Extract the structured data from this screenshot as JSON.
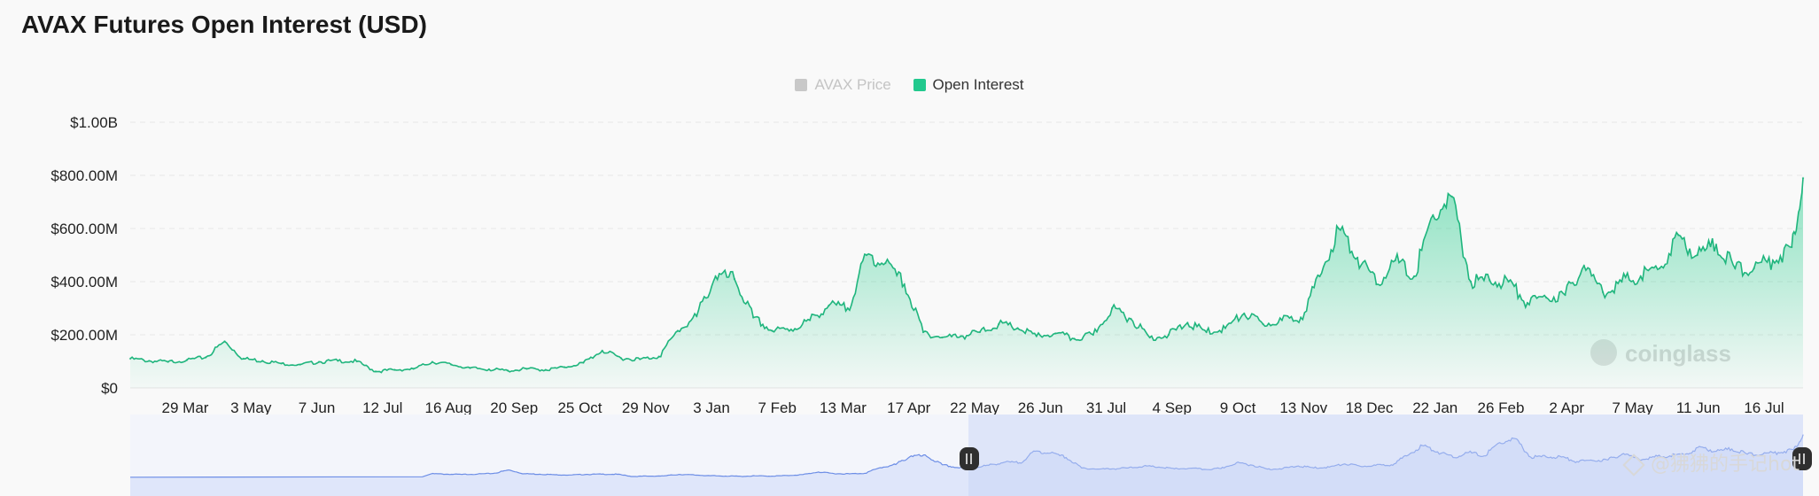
{
  "title": "AVAX Futures Open Interest (USD)",
  "legend": [
    {
      "label": "AVAX Price",
      "color": "#c8c8c8",
      "active": false
    },
    {
      "label": "Open Interest",
      "color": "#22c98e",
      "active": true
    }
  ],
  "brand_watermark": "coinglass",
  "overlay_watermark": "@狒狒的手记hot",
  "colors": {
    "line": "#1fb57d",
    "area_top": "#33cf93",
    "navigator_line": "#6d8ee6",
    "navigator_fill": "#d6e0f8"
  },
  "chart_data": {
    "type": "area",
    "title": "AVAX Futures Open Interest (USD)",
    "ylim": [
      0,
      1000
    ],
    "y_unit": "M USD",
    "y_tick_labels": [
      "$0",
      "$200.00M",
      "$400.00M",
      "$600.00M",
      "$800.00M",
      "$1.00B"
    ],
    "y_tick_values": [
      0,
      200,
      400,
      600,
      800,
      1000
    ],
    "x_tick_labels": [
      "29 Mar",
      "3 May",
      "7 Jun",
      "12 Jul",
      "16 Aug",
      "20 Sep",
      "25 Oct",
      "29 Nov",
      "3 Jan",
      "7 Feb",
      "13 Mar",
      "17 Apr",
      "22 May",
      "26 Jun",
      "31 Jul",
      "4 Sep",
      "9 Oct",
      "13 Nov",
      "18 Dec",
      "22 Jan",
      "26 Feb",
      "2 Apr",
      "7 May",
      "11 Jun",
      "16 Jul"
    ],
    "grid": true,
    "legend_position": "top-center",
    "series": [
      {
        "name": "Open Interest",
        "x": [
          "2023-02-17",
          "2023-02-27",
          "2023-03-09",
          "2023-03-19",
          "2023-03-29",
          "2023-04-08",
          "2023-04-18",
          "2023-04-28",
          "2023-05-08",
          "2023-05-18",
          "2023-05-28",
          "2023-06-07",
          "2023-06-17",
          "2023-06-27",
          "2023-07-07",
          "2023-07-17",
          "2023-07-27",
          "2023-08-06",
          "2023-08-16",
          "2023-08-26",
          "2023-09-05",
          "2023-09-15",
          "2023-09-25",
          "2023-10-05",
          "2023-10-15",
          "2023-10-25",
          "2023-11-04",
          "2023-11-14",
          "2023-11-24",
          "2023-12-04",
          "2023-12-14",
          "2023-12-24",
          "2024-01-03",
          "2024-01-13",
          "2024-01-23",
          "2024-02-02",
          "2024-02-12",
          "2024-02-22",
          "2024-03-03",
          "2024-03-13",
          "2024-03-23",
          "2024-04-02",
          "2024-04-12",
          "2024-04-22",
          "2024-05-02",
          "2024-05-12",
          "2024-05-22",
          "2024-06-01",
          "2024-06-11",
          "2024-06-21",
          "2024-07-01",
          "2024-07-11",
          "2024-07-21",
          "2024-07-31",
          "2024-08-10",
          "2024-08-20",
          "2024-08-30",
          "2024-09-09",
          "2024-09-19",
          "2024-09-29",
          "2024-10-09",
          "2024-10-19",
          "2024-10-29",
          "2024-11-08",
          "2024-11-18",
          "2024-11-28",
          "2024-12-08",
          "2024-12-18",
          "2024-12-28",
          "2025-01-07",
          "2025-01-17",
          "2025-01-27",
          "2025-02-06",
          "2025-02-16",
          "2025-02-26",
          "2025-03-08",
          "2025-03-18",
          "2025-03-28",
          "2025-04-07",
          "2025-04-17",
          "2025-04-27",
          "2025-05-07",
          "2025-05-17",
          "2025-05-27",
          "2025-06-06",
          "2025-06-16",
          "2025-06-26",
          "2025-07-06",
          "2025-07-16",
          "2025-07-22"
        ],
        "values": [
          110,
          102,
          98,
          105,
          115,
          175,
          110,
          102,
          92,
          88,
          98,
          102,
          100,
          62,
          68,
          72,
          98,
          88,
          75,
          70,
          65,
          72,
          68,
          78,
          95,
          140,
          112,
          108,
          118,
          215,
          270,
          420,
          410,
          265,
          215,
          220,
          255,
          310,
          300,
          500,
          470,
          390,
          210,
          190,
          195,
          210,
          240,
          225,
          195,
          205,
          185,
          200,
          300,
          260,
          190,
          200,
          245,
          210,
          225,
          280,
          240,
          255,
          265,
          420,
          600,
          490,
          390,
          480,
          420,
          650,
          720,
          400,
          405,
          400,
          320,
          340,
          350,
          460,
          360,
          400,
          420,
          450,
          575,
          500,
          540,
          450,
          450,
          480,
          530,
          790
        ]
      }
    ]
  }
}
